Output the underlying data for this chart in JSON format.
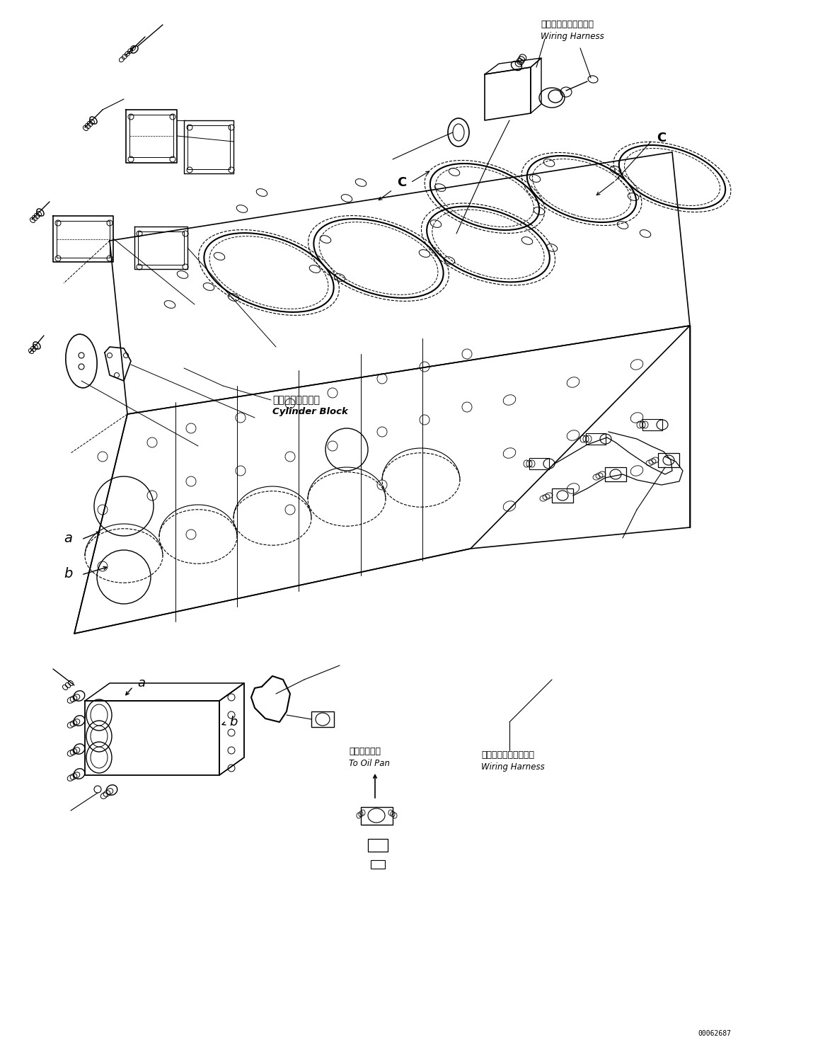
{
  "background_color": "#ffffff",
  "line_color": "#000000",
  "figure_width": 11.49,
  "figure_height": 14.79,
  "dpi": 100,
  "part_number": "00062687",
  "labels": {
    "wiring_harness_jp_top": "ワイヤリングハーネス",
    "wiring_harness_en_top": "Wiring Harness",
    "cylinder_block_jp": "シリンダブロック",
    "cylinder_block_en": "Cylinder Block",
    "wiring_harness_jp_bot": "ワイヤリングハーネス",
    "wiring_harness_en_bot": "Wiring Harness",
    "to_oil_pan_jp": "オイルパンへ",
    "to_oil_pan_en": "To Oil Pan",
    "label_a": "a",
    "label_b": "b",
    "label_c": "C",
    "label_a2": "a",
    "label_b2": "b"
  }
}
